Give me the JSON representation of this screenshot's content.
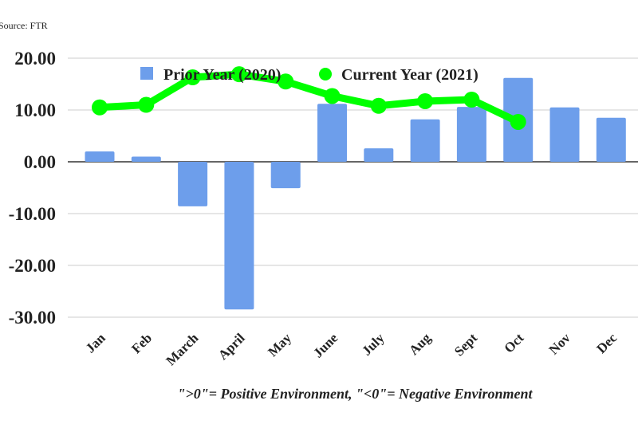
{
  "source_note": "Source: FTR",
  "footer_note": "\">0\"= Positive Environment, \"<0\"= Negative Environment",
  "colors": {
    "prior": "#6d9eeb",
    "current": "#00ff00"
  },
  "chart_data": {
    "type": "bar+line",
    "categories": [
      "Jan",
      "Feb",
      "March",
      "April",
      "May",
      "June",
      "July",
      "Aug",
      "Sept",
      "Oct",
      "Nov",
      "Dec"
    ],
    "series": [
      {
        "name": "Prior Year (2020)",
        "type": "bar",
        "values": [
          2.0,
          1.0,
          -8.6,
          -28.5,
          -5.1,
          11.2,
          2.6,
          8.2,
          10.6,
          16.2,
          10.5,
          8.5
        ]
      },
      {
        "name": "Current Year (2021)",
        "type": "line",
        "values": [
          10.5,
          11.0,
          16.3,
          16.9,
          15.5,
          12.7,
          10.8,
          11.7,
          12.0,
          7.7,
          null,
          null
        ]
      }
    ],
    "yticks": [
      "20.00",
      "10.00",
      "0.00",
      "-10.00",
      "-20.00",
      "-30.00"
    ],
    "ylim": [
      -30,
      20
    ],
    "grid": true,
    "legend": "top"
  }
}
